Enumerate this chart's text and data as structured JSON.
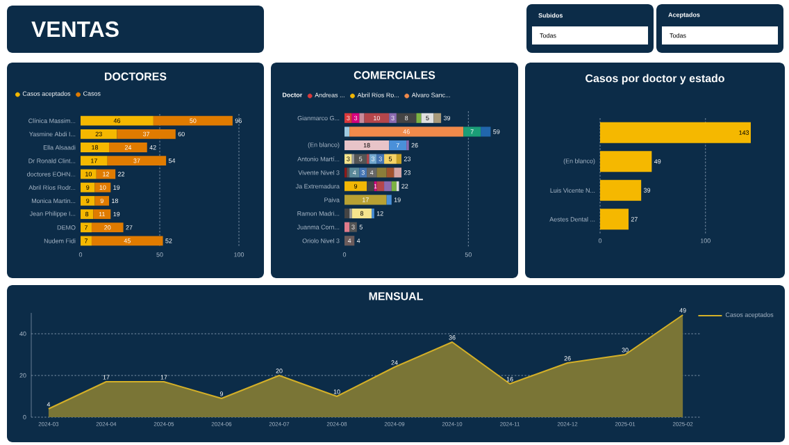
{
  "chart_data": [
    {
      "type": "other",
      "title": "VENTAS"
    },
    {
      "type": "other",
      "annotations": [
        "Subidos",
        "Todas",
        "Aceptados",
        "Todas"
      ]
    },
    {
      "type": "bar",
      "title": "DOCTORES",
      "orientation": "horizontal",
      "stacked": true,
      "legend": "top left",
      "data_labels": true,
      "ref_lines": [
        {
          "axis": "x",
          "value": 50
        },
        {
          "axis": "x",
          "value": 100
        }
      ],
      "categories": [
        "Clínica Massim...",
        "Yasmine Abdi I...",
        "Ella Alsaadi",
        "Dr Ronald Clint...",
        "doctores EOHN...",
        "Abril Ríos Rodr...",
        "Monica Martin...",
        "Jean Philippe I...",
        "DEMO",
        "Nudem Fidi"
      ],
      "series": [
        {
          "name": "Casos aceptados",
          "color": "#f5b800",
          "values": [
            46,
            23,
            18,
            17,
            10,
            9,
            9,
            8,
            7,
            7
          ]
        },
        {
          "name": "Casos",
          "color": "#e07b00",
          "values": [
            50,
            37,
            24,
            37,
            12,
            10,
            9,
            11,
            20,
            45
          ]
        }
      ],
      "totals": [
        "96",
        "60",
        "42",
        "54",
        "22",
        "19",
        "18",
        "19",
        "27",
        "52"
      ],
      "xlim": [
        0,
        100
      ],
      "xticks": [
        0,
        50,
        100
      ]
    },
    {
      "type": "bar",
      "title": "COMERCIALES",
      "orientation": "horizontal",
      "stacked": true,
      "legend": "top left",
      "legend_title": "Doctor",
      "ref_lines": [
        {
          "axis": "x",
          "value": 50
        }
      ],
      "categories": [
        "Gianmarco G...",
        null,
        "(En blanco)",
        "Antonio Martí...",
        "Vivente Nivel 3",
        "Ja Extremadura",
        "Paiva",
        "Ramon Madri...",
        "Juanma Corn...",
        "Oriolo Nivel 3"
      ],
      "series": [
        {
          "name": "Andreas ...",
          "color": "#d9393b",
          "values": [
            3,
            null,
            null,
            null,
            null,
            null,
            null,
            null,
            null,
            null
          ],
          "value_labels": [
            "3",
            null,
            null,
            null,
            null,
            null,
            null,
            null,
            null,
            null
          ]
        },
        {
          "name": "Abril Ríos Ro...",
          "color": "#f2b705",
          "values": [
            null,
            null,
            null,
            null,
            null,
            9,
            null,
            null,
            null,
            null
          ],
          "value_labels": [
            null,
            null,
            null,
            null,
            null,
            "9",
            null,
            null,
            null,
            null
          ]
        },
        {
          "colors": [
            "#d6007e",
            "#9ecae1",
            "#e8c4c8",
            "#f6e58d",
            "#8b1a1a",
            "#444444",
            "#b8a133",
            "#444444",
            "#e07b8b",
            "#6b5b5b"
          ],
          "values": [
            3,
            2,
            18,
            3,
            1,
            3,
            17,
            2,
            2,
            4
          ],
          "value_labels": [
            "3",
            null,
            "18",
            "3",
            null,
            null,
            "17",
            null,
            null,
            "4"
          ]
        },
        {
          "name": "Alvaro Sanc...",
          "color": "#f08a4b",
          "values": [
            null,
            46,
            null,
            null,
            null,
            null,
            null,
            null,
            null,
            null
          ],
          "value_labels": [
            null,
            "46",
            null,
            null,
            null,
            null,
            null,
            null,
            null,
            null
          ]
        },
        {
          "colors": [
            "#c98a9a",
            "#1b9e77",
            "#4a90d9",
            "#999999",
            "#555555",
            "#d6007e",
            "#4a90d9",
            "#999999",
            "#555555",
            "#555555"
          ],
          "values": [
            2,
            7,
            7,
            1,
            1,
            1,
            2,
            1,
            3,
            null
          ],
          "value_labels": [
            null,
            "7",
            "7",
            null,
            null,
            "1",
            null,
            null,
            "3",
            null
          ]
        },
        {
          "colors": [
            "#b5464b",
            "#2166ac",
            "#8c6bb1",
            "#555555",
            "#5b8a9a",
            "#b5464b",
            "#999999",
            "#f6e58d",
            "#999999",
            "#999999"
          ],
          "values": [
            10,
            4,
            1,
            5,
            4,
            3,
            null,
            8,
            null,
            null
          ],
          "value_labels": [
            "10",
            null,
            null,
            "5",
            "4",
            null,
            null,
            "8",
            null,
            null
          ]
        },
        {
          "colors": [
            "#8c6bb1",
            "#999999",
            "#999999",
            "#b5464b",
            "#4575b4",
            "#8c6bb1",
            "#999999",
            "#4a90d9",
            "#999999",
            "#999999"
          ],
          "values": [
            3,
            null,
            null,
            1,
            3,
            3,
            null,
            1,
            null,
            null
          ],
          "value_labels": [
            "3",
            null,
            null,
            null,
            "3",
            null,
            null,
            null,
            null,
            null
          ]
        },
        {
          "colors": [
            "#444444",
            "#999999",
            "#999999",
            "#74a9cf",
            "#666666",
            "#7cb342",
            "#999999",
            "#999999",
            "#999999",
            "#999999"
          ],
          "values": [
            8,
            null,
            null,
            3,
            4,
            2,
            null,
            null,
            null,
            null
          ],
          "value_labels": [
            "8",
            null,
            null,
            "3",
            "4",
            null,
            null,
            null,
            null,
            null
          ]
        },
        {
          "colors": [
            "#7cb342",
            "#999999",
            "#999999",
            "#4575b4",
            "#8b7d3a",
            "#e0e0e0",
            "#999999",
            "#999999",
            "#999999",
            "#999999"
          ],
          "values": [
            2,
            null,
            null,
            3,
            4,
            1,
            null,
            null,
            null,
            null
          ],
          "value_labels": [
            null,
            null,
            null,
            "3",
            null,
            null,
            null,
            null,
            null,
            null
          ]
        },
        {
          "colors": [
            "#e0e0e0",
            "#999999",
            "#999999",
            "#f6d365",
            "#a0522d",
            "#999999",
            "#999999",
            "#999999",
            "#999999",
            "#999999"
          ],
          "values": [
            5,
            null,
            null,
            5,
            3,
            null,
            null,
            null,
            null,
            null
          ],
          "value_labels": [
            "5",
            null,
            null,
            "5",
            null,
            null,
            null,
            null,
            null,
            null
          ]
        },
        {
          "colors": [
            "#a89a7a",
            "#999999",
            "#999999",
            "#c9a227",
            "#d4a5a5",
            "#999999",
            "#999999",
            "#999999",
            "#999999",
            "#999999"
          ],
          "values": [
            3,
            null,
            null,
            2,
            3,
            null,
            null,
            null,
            null,
            null
          ],
          "value_labels": [
            null,
            null,
            null,
            null,
            null,
            null,
            null,
            null,
            null,
            null
          ]
        }
      ],
      "totals": [
        "39",
        "59",
        "26",
        "23",
        "23",
        "22",
        "19",
        "12",
        "5",
        "4"
      ],
      "xlim": [
        0,
        60
      ],
      "xticks": [
        0,
        50
      ]
    },
    {
      "type": "bar",
      "title": "Casos por doctor y estado",
      "orientation": "horizontal",
      "data_labels": true,
      "ref_lines": [
        {
          "axis": "x",
          "value": 0
        },
        {
          "axis": "x",
          "value": 100
        }
      ],
      "categories": [
        null,
        "(En blanco)",
        "Luis Vicente N...",
        "Aestes Dental ..."
      ],
      "values": [
        143,
        49,
        39,
        27
      ],
      "color": "#f5b800",
      "xlim": [
        0,
        145
      ],
      "xticks": [
        0,
        100
      ]
    },
    {
      "type": "area",
      "title": "MENSUAL",
      "legend": "top right",
      "data_labels": true,
      "grid": "y",
      "categories": [
        "2024-03",
        "2024-04",
        "2024-05",
        "2024-06",
        "2024-07",
        "2024-08",
        "2024-09",
        "2024-10",
        "2024-11",
        "2024-12",
        "2025-01",
        "2025-02"
      ],
      "series": [
        {
          "name": "Casos aceptados",
          "color": "#d4b028",
          "values": [
            4,
            17,
            17,
            9,
            20,
            10,
            24,
            36,
            16,
            26,
            30,
            49
          ]
        }
      ],
      "ylim": [
        0,
        50
      ],
      "yticks": [
        0,
        20,
        40
      ]
    }
  ]
}
